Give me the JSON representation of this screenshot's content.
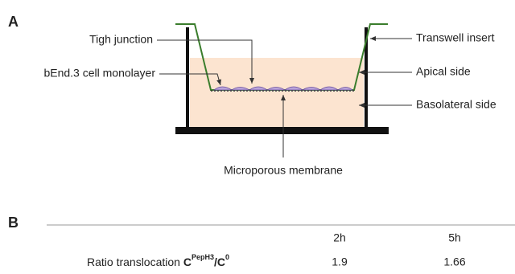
{
  "panels": {
    "a": "A",
    "b": "B"
  },
  "diagram": {
    "tight_junction": "Tigh junction",
    "cell_monolayer": "bEnd.3 cell monolayer",
    "transwell_insert": "Transwell insert",
    "apical_side": "Apical side",
    "basolateral_side": "Basolateral side",
    "membrane": "Microporous membrane"
  },
  "table": {
    "columns": [
      "2h",
      "5h"
    ],
    "row": {
      "label": "Ratio translocation ",
      "numerator": "C",
      "numerator_sup": "PepH3",
      "denominator": "/C",
      "denominator_sup": "0",
      "values": [
        1.9,
        1.66
      ]
    }
  }
}
